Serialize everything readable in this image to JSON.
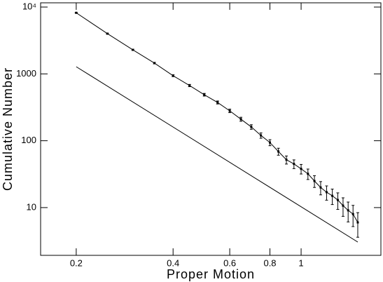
{
  "chart_data": {
    "type": "line",
    "xlabel": "Proper Motion",
    "ylabel": "Cumulative Number",
    "xscale": "log",
    "yscale": "log",
    "xlim": [
      0.155,
      1.77
    ],
    "ylim": [
      1.93,
      11570
    ],
    "xticks": [
      0.2,
      0.4,
      0.6,
      0.8,
      1
    ],
    "yticks": [
      10,
      100,
      1000,
      {
        "value": 10000,
        "label": "10⁴"
      }
    ],
    "color": "#000000",
    "series": [
      {
        "x": [
          0.2,
          0.25,
          0.3,
          0.35,
          0.4,
          0.45,
          0.5,
          0.55,
          0.6,
          0.65,
          0.7,
          0.75,
          0.8,
          0.85,
          0.9,
          0.95,
          1.0,
          1.05,
          1.1,
          1.15,
          1.2,
          1.25,
          1.3,
          1.35,
          1.4,
          1.45,
          1.5
        ],
        "values": [
          8200,
          4000,
          2290,
          1450,
          940,
          670,
          488,
          374,
          280,
          210,
          161,
          120,
          94,
          69,
          52,
          45,
          38,
          32,
          25,
          20,
          17,
          15,
          13,
          10.7,
          9.1,
          8,
          6
        ],
        "errors": [
          90.6,
          63.2,
          47.9,
          38.1,
          30.7,
          25.9,
          22.1,
          19.3,
          16.7,
          14.5,
          12.7,
          11,
          9.7,
          8.3,
          7.2,
          6.7,
          6.2,
          5.7,
          5,
          4.5,
          4.1,
          3.9,
          3.6,
          3.3,
          3,
          2.8,
          2.4
        ]
      },
      {
        "x": [
          0.2,
          1.5
        ],
        "values": [
          1280,
          3.05
        ]
      }
    ]
  }
}
